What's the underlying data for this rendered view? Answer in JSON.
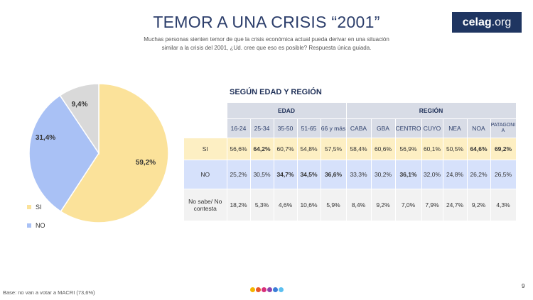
{
  "header": {
    "title": "TEMOR A UNA CRISIS “2001”",
    "subtitle_line1": "Muchas personas sienten temor de que la crisis económica actual pueda derivar en una situación",
    "subtitle_line2": "similar a la crisis del 2001, ¿Ud. cree que eso es posible? Respuesta única guiada."
  },
  "logo": {
    "brand": "celag",
    "suffix": ".org"
  },
  "chart_data": [
    {
      "type": "pie",
      "categories": [
        "SI",
        "NO",
        "No sabe/ No contesta"
      ],
      "values": [
        59.2,
        31.4,
        9.4
      ],
      "labels": [
        "59,2%",
        "31,4%",
        "9,4%"
      ],
      "colors": [
        "#fbe29a",
        "#a9c1f5",
        "#d9d9d9"
      ],
      "legend": [
        "SI",
        "NO"
      ],
      "legend_placement": "bottom-left"
    },
    {
      "type": "table",
      "title": "SEGÚN EDAD Y REGIÓN",
      "groups": [
        "EDAD",
        "REGIÓN"
      ],
      "columns": [
        "16-24",
        "25-34",
        "35-50",
        "51-65",
        "66 y más",
        "CABA",
        "GBA",
        "CENTRO",
        "CUYO",
        "NEA",
        "NOA",
        "PATAGONIA"
      ],
      "column_display": [
        "16-24",
        "25-34",
        "35-50",
        "51-65",
        "66 y más",
        "CABA",
        "GBA",
        "CENTRO",
        "CUYO",
        "NEA",
        "NOA",
        "PATAGONI",
        "A"
      ],
      "rows": [
        {
          "label": "SI",
          "values": [
            "56,6%",
            "64,2%",
            "60,7%",
            "54,8%",
            "57,5%",
            "58,4%",
            "60,6%",
            "56,9%",
            "60,1%",
            "50,5%",
            "64,6%",
            "69,2%"
          ],
          "bold": [
            1,
            10,
            11
          ]
        },
        {
          "label": "NO",
          "values": [
            "25,2%",
            "30,5%",
            "34,7%",
            "34,5%",
            "36,6%",
            "33,3%",
            "30,2%",
            "36,1%",
            "32,0%",
            "24,8%",
            "26,2%",
            "26,5%"
          ],
          "bold": [
            2,
            3,
            4,
            7
          ]
        },
        {
          "label_line1": "No sabe/ No",
          "label_line2": "contesta",
          "values": [
            "18,2%",
            "5,3%",
            "4,6%",
            "10,6%",
            "5,9%",
            "8,4%",
            "9,2%",
            "7,0%",
            "7,9%",
            "24,7%",
            "9,2%",
            "4,3%"
          ],
          "bold": []
        }
      ]
    }
  ],
  "footer": {
    "base": "Base: no van a votar a MACRI (73,6%)",
    "page": "9"
  },
  "dots_colors": [
    "#f4b400",
    "#e8572a",
    "#d8307a",
    "#8e44ad",
    "#3b7dd8",
    "#5cc0f0"
  ]
}
